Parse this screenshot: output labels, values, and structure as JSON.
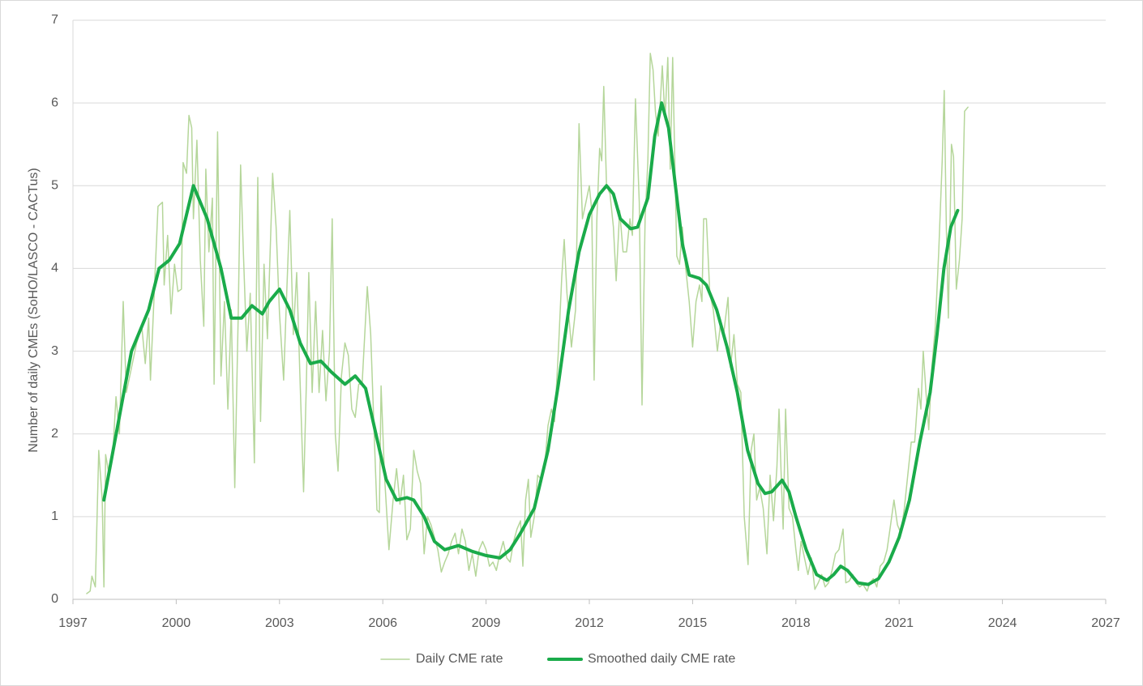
{
  "chart_data": {
    "type": "line",
    "y_label": "Number of daily CMEs (SoHO/LASCO - CACTus)",
    "xlim": [
      1997,
      2027
    ],
    "xticks": [
      1997,
      2000,
      2003,
      2006,
      2009,
      2012,
      2015,
      2018,
      2021,
      2024,
      2027
    ],
    "ylim": [
      0,
      7
    ],
    "yticks": [
      0,
      1,
      2,
      3,
      4,
      5,
      6,
      7
    ],
    "grid": true,
    "legend": "bottom",
    "series": [
      {
        "name": "Daily CME rate",
        "color": "#b5d69a",
        "width": 1.5,
        "x": [
          1997.4,
          1997.5,
          1997.55,
          1997.65,
          1997.75,
          1997.85,
          1997.9,
          1997.95,
          1998.05,
          1998.15,
          1998.25,
          1998.35,
          1998.46,
          1998.55,
          1998.7,
          1998.85,
          1999.0,
          1999.1,
          1999.2,
          1999.25,
          1999.35,
          1999.47,
          1999.6,
          1999.65,
          1999.75,
          1999.85,
          1999.95,
          2000.05,
          2000.15,
          2000.2,
          2000.3,
          2000.37,
          2000.45,
          2000.5,
          2000.6,
          2000.7,
          2000.8,
          2000.86,
          2000.95,
          2001.05,
          2001.1,
          2001.2,
          2001.3,
          2001.4,
          2001.5,
          2001.6,
          2001.7,
          2001.8,
          2001.87,
          2001.95,
          2002.05,
          2002.15,
          2002.27,
          2002.37,
          2002.45,
          2002.55,
          2002.65,
          2002.8,
          2002.9,
          2003.0,
          2003.12,
          2003.2,
          2003.3,
          2003.4,
          2003.5,
          2003.6,
          2003.7,
          2003.78,
          2003.85,
          2003.95,
          2004.05,
          2004.15,
          2004.25,
          2004.35,
          2004.45,
          2004.53,
          2004.62,
          2004.7,
          2004.8,
          2004.9,
          2005.0,
          2005.1,
          2005.2,
          2005.3,
          2005.4,
          2005.55,
          2005.65,
          2005.75,
          2005.83,
          2005.9,
          2005.95,
          2006.05,
          2006.18,
          2006.3,
          2006.4,
          2006.5,
          2006.6,
          2006.7,
          2006.8,
          2006.9,
          2007.0,
          2007.1,
          2007.2,
          2007.3,
          2007.4,
          2007.5,
          2007.6,
          2007.7,
          2007.8,
          2007.9,
          2008.0,
          2008.1,
          2008.2,
          2008.3,
          2008.4,
          2008.5,
          2008.6,
          2008.7,
          2008.8,
          2008.9,
          2009.0,
          2009.1,
          2009.2,
          2009.3,
          2009.4,
          2009.5,
          2009.6,
          2009.7,
          2009.8,
          2009.9,
          2010.0,
          2010.07,
          2010.15,
          2010.23,
          2010.3,
          2010.4,
          2010.5,
          2010.6,
          2010.7,
          2010.8,
          2010.9,
          2010.99,
          2011.1,
          2011.2,
          2011.27,
          2011.35,
          2011.48,
          2011.6,
          2011.7,
          2011.8,
          2011.9,
          2012.0,
          2012.07,
          2012.14,
          2012.22,
          2012.3,
          2012.36,
          2012.42,
          2012.5,
          2012.6,
          2012.7,
          2012.78,
          2012.88,
          2012.98,
          2013.08,
          2013.18,
          2013.25,
          2013.34,
          2013.45,
          2013.53,
          2013.62,
          2013.7,
          2013.77,
          2013.85,
          2013.92,
          2014.0,
          2014.06,
          2014.12,
          2014.2,
          2014.28,
          2014.35,
          2014.42,
          2014.54,
          2014.62,
          2014.7,
          2014.8,
          2014.9,
          2015.0,
          2015.1,
          2015.2,
          2015.27,
          2015.32,
          2015.4,
          2015.5,
          2015.6,
          2015.72,
          2015.8,
          2015.9,
          2016.03,
          2016.1,
          2016.2,
          2016.3,
          2016.4,
          2016.5,
          2016.61,
          2016.7,
          2016.78,
          2016.86,
          2016.95,
          2017.05,
          2017.16,
          2017.25,
          2017.35,
          2017.45,
          2017.51,
          2017.58,
          2017.63,
          2017.7,
          2017.8,
          2017.9,
          2018.0,
          2018.07,
          2018.15,
          2018.25,
          2018.35,
          2018.45,
          2018.55,
          2018.65,
          2018.75,
          2018.85,
          2018.95,
          2019.05,
          2019.15,
          2019.25,
          2019.37,
          2019.45,
          2019.55,
          2019.65,
          2019.75,
          2019.85,
          2019.95,
          2020.07,
          2020.15,
          2020.25,
          2020.35,
          2020.45,
          2020.55,
          2020.65,
          2020.75,
          2020.85,
          2020.95,
          2021.05,
          2021.15,
          2021.25,
          2021.35,
          2021.45,
          2021.56,
          2021.63,
          2021.7,
          2021.78,
          2021.86,
          2021.95,
          2022.05,
          2022.15,
          2022.25,
          2022.31,
          2022.37,
          2022.43,
          2022.52,
          2022.58,
          2022.66,
          2022.75,
          2022.83,
          2022.9,
          2023.0
        ],
        "values": [
          0.07,
          0.1,
          0.28,
          0.15,
          1.8,
          1.2,
          0.15,
          1.75,
          1.5,
          1.7,
          2.45,
          2.0,
          3.6,
          2.5,
          2.8,
          3.1,
          3.3,
          2.85,
          3.4,
          2.65,
          3.6,
          4.75,
          4.8,
          3.8,
          4.4,
          3.45,
          4.05,
          3.72,
          3.75,
          5.28,
          5.15,
          5.85,
          5.7,
          4.6,
          5.55,
          4.1,
          3.3,
          5.2,
          4.2,
          4.85,
          2.6,
          5.65,
          2.7,
          3.6,
          2.3,
          3.5,
          1.35,
          3.4,
          5.25,
          4.2,
          3.0,
          3.7,
          1.65,
          5.1,
          2.15,
          4.05,
          3.15,
          5.15,
          4.5,
          3.45,
          2.65,
          3.6,
          4.7,
          3.2,
          3.95,
          2.6,
          1.3,
          2.6,
          3.95,
          2.5,
          3.6,
          2.5,
          3.25,
          2.4,
          3.0,
          4.6,
          2.0,
          1.55,
          2.7,
          3.1,
          2.95,
          2.3,
          2.2,
          2.6,
          2.6,
          3.78,
          3.2,
          2.0,
          1.08,
          1.05,
          2.58,
          1.5,
          0.6,
          1.2,
          1.58,
          1.15,
          1.5,
          0.72,
          0.85,
          1.8,
          1.55,
          1.4,
          0.55,
          1.0,
          0.9,
          0.75,
          0.6,
          0.33,
          0.45,
          0.55,
          0.7,
          0.8,
          0.55,
          0.85,
          0.7,
          0.35,
          0.55,
          0.28,
          0.6,
          0.7,
          0.6,
          0.4,
          0.45,
          0.35,
          0.55,
          0.7,
          0.5,
          0.45,
          0.7,
          0.85,
          0.95,
          0.4,
          1.2,
          1.45,
          0.75,
          1.0,
          1.5,
          1.45,
          1.6,
          2.1,
          2.3,
          2.15,
          3.0,
          3.9,
          4.35,
          3.7,
          3.05,
          3.5,
          5.75,
          4.6,
          4.8,
          5.0,
          4.7,
          2.65,
          4.6,
          5.45,
          5.3,
          6.2,
          5.0,
          4.9,
          4.5,
          3.85,
          4.7,
          4.2,
          4.2,
          4.6,
          4.4,
          6.05,
          4.8,
          2.35,
          4.6,
          5.3,
          6.6,
          6.4,
          5.9,
          5.6,
          6.0,
          6.45,
          5.8,
          6.55,
          5.2,
          6.55,
          4.15,
          4.05,
          4.5,
          4.0,
          3.6,
          3.05,
          3.6,
          3.8,
          3.6,
          4.6,
          4.6,
          3.7,
          3.5,
          3.0,
          3.3,
          3.2,
          3.65,
          2.8,
          3.2,
          2.6,
          2.5,
          1.0,
          0.42,
          1.8,
          2.0,
          1.2,
          1.35,
          1.1,
          0.55,
          1.5,
          0.95,
          1.6,
          2.3,
          1.4,
          0.85,
          2.3,
          1.1,
          1.0,
          0.6,
          0.35,
          0.7,
          0.5,
          0.3,
          0.5,
          0.12,
          0.2,
          0.3,
          0.15,
          0.2,
          0.35,
          0.55,
          0.6,
          0.85,
          0.2,
          0.22,
          0.3,
          0.2,
          0.15,
          0.18,
          0.1,
          0.2,
          0.25,
          0.15,
          0.4,
          0.45,
          0.6,
          0.9,
          1.2,
          0.9,
          0.8,
          1.1,
          1.5,
          1.9,
          1.9,
          2.55,
          2.3,
          3.0,
          2.5,
          2.05,
          2.8,
          3.3,
          4.2,
          5.3,
          6.15,
          4.5,
          3.4,
          5.5,
          5.35,
          3.75,
          4.1,
          4.6,
          5.9,
          5.95
        ]
      },
      {
        "name": "Smoothed daily CME rate",
        "color": "#1aab4a",
        "width": 4,
        "x": [
          1997.9,
          1998.3,
          1998.7,
          1999.2,
          1999.5,
          1999.8,
          2000.1,
          2000.5,
          2000.9,
          2001.3,
          2001.6,
          2001.9,
          2002.2,
          2002.5,
          2002.7,
          2003.0,
          2003.3,
          2003.6,
          2003.9,
          2004.2,
          2004.5,
          2004.9,
          2005.2,
          2005.5,
          2005.8,
          2006.1,
          2006.4,
          2006.7,
          2006.9,
          2007.2,
          2007.5,
          2007.8,
          2008.2,
          2008.6,
          2009.0,
          2009.4,
          2009.7,
          2010.0,
          2010.4,
          2010.8,
          2011.1,
          2011.4,
          2011.7,
          2012.0,
          2012.3,
          2012.5,
          2012.7,
          2012.9,
          2013.2,
          2013.4,
          2013.7,
          2013.9,
          2014.1,
          2014.3,
          2014.5,
          2014.7,
          2014.9,
          2015.2,
          2015.4,
          2015.7,
          2016.0,
          2016.3,
          2016.6,
          2016.9,
          2017.1,
          2017.3,
          2017.6,
          2017.8,
          2018.0,
          2018.3,
          2018.6,
          2018.9,
          2019.1,
          2019.3,
          2019.5,
          2019.8,
          2020.1,
          2020.4,
          2020.7,
          2021.0,
          2021.3,
          2021.6,
          2021.9,
          2022.1,
          2022.3,
          2022.5,
          2022.7
        ],
        "values": [
          1.2,
          2.1,
          3.0,
          3.5,
          4.0,
          4.1,
          4.3,
          5.0,
          4.6,
          4.0,
          3.4,
          3.4,
          3.55,
          3.45,
          3.6,
          3.75,
          3.5,
          3.1,
          2.85,
          2.88,
          2.75,
          2.6,
          2.7,
          2.55,
          2.0,
          1.45,
          1.2,
          1.23,
          1.2,
          1.0,
          0.7,
          0.6,
          0.65,
          0.58,
          0.53,
          0.5,
          0.6,
          0.8,
          1.1,
          1.8,
          2.6,
          3.5,
          4.2,
          4.65,
          4.9,
          5.0,
          4.9,
          4.6,
          4.48,
          4.5,
          4.85,
          5.6,
          6.0,
          5.7,
          5.0,
          4.3,
          3.92,
          3.88,
          3.8,
          3.5,
          3.05,
          2.5,
          1.8,
          1.4,
          1.28,
          1.3,
          1.44,
          1.3,
          1.0,
          0.6,
          0.3,
          0.23,
          0.3,
          0.4,
          0.35,
          0.2,
          0.18,
          0.25,
          0.45,
          0.75,
          1.2,
          1.9,
          2.5,
          3.2,
          4.0,
          4.5,
          4.7
        ]
      }
    ]
  }
}
